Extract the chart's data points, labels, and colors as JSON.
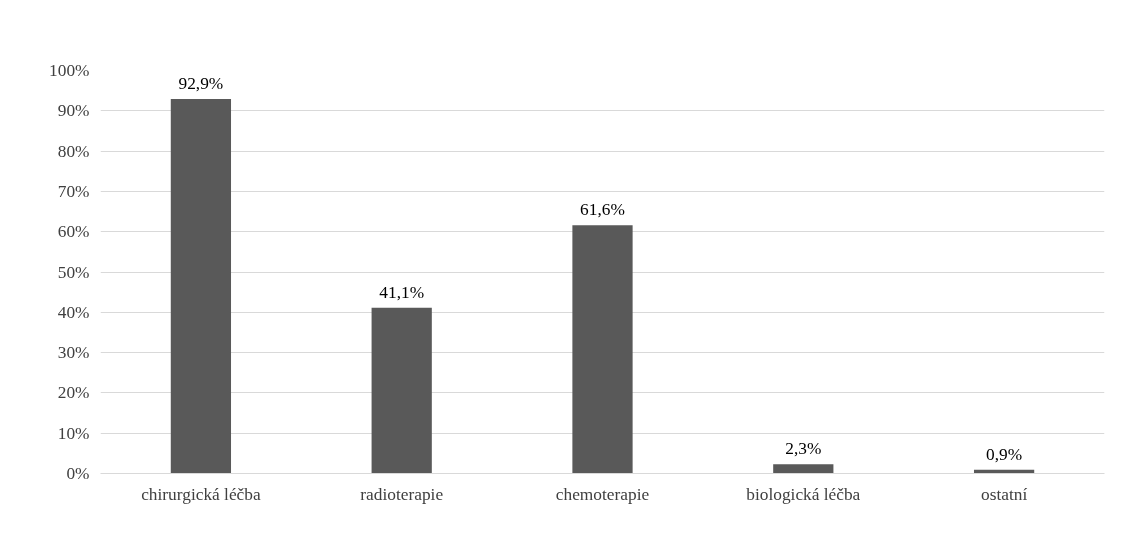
{
  "chart_data": {
    "type": "bar",
    "categories": [
      "chirurgická léčba",
      "radioterapie",
      "chemoterapie",
      "biologická léčba",
      "ostatní"
    ],
    "values": [
      92.9,
      41.1,
      61.6,
      2.3,
      0.9
    ],
    "value_labels": [
      "92,9%",
      "41,1%",
      "61,6%",
      "2,3%",
      "0,9%"
    ],
    "color": "#595959",
    "ylim": [
      0,
      100
    ],
    "yticks": [
      {
        "value": 0,
        "label": "0%"
      },
      {
        "value": 10,
        "label": "10%"
      },
      {
        "value": 20,
        "label": "20%"
      },
      {
        "value": 30,
        "label": "30%"
      },
      {
        "value": 40,
        "label": "40%"
      },
      {
        "value": 50,
        "label": "50%"
      },
      {
        "value": 60,
        "label": "60%"
      },
      {
        "value": 70,
        "label": "70%"
      },
      {
        "value": 80,
        "label": "80%"
      },
      {
        "value": 90,
        "label": "90%"
      },
      {
        "value": 100,
        "label": "100%"
      }
    ],
    "grid": "y"
  }
}
